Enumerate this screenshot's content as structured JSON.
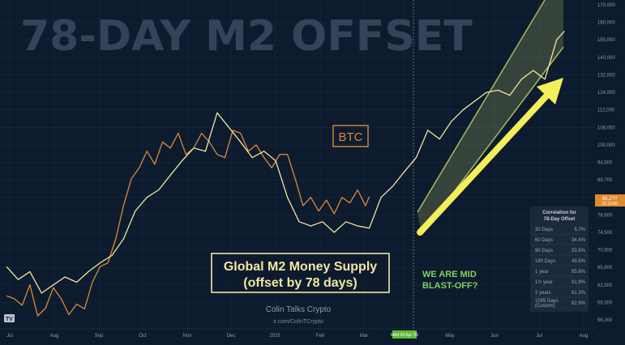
{
  "big_title": "78-DAY M2 OFFSET",
  "chart_data": {
    "type": "line",
    "title": "78-DAY M2 OFFSET",
    "x_ticks": [
      "Jul",
      "Aug",
      "Sep",
      "Oct",
      "Nov",
      "Dec",
      "2025",
      "Feb",
      "Mar",
      "Wed 09 Apr '25",
      "May",
      "Jun",
      "Jul",
      "Aug"
    ],
    "y_ticks": [
      56300,
      59300,
      62500,
      65800,
      70500,
      74500,
      78600,
      85000,
      89700,
      94500,
      100000,
      106000,
      112000,
      124000,
      132000,
      140000,
      150000,
      160000,
      170000
    ],
    "current_price_label": "85,2??",
    "current_price_sublabel": "22:19:50",
    "series": [
      {
        "name": "BTC",
        "color": "#d98a38",
        "x": [
          0,
          2,
          4,
          6,
          8,
          10,
          12,
          14,
          16,
          18,
          20,
          22,
          24,
          26,
          28,
          30,
          32,
          34,
          36,
          38,
          40,
          42,
          44,
          46,
          48,
          50,
          52,
          54,
          56,
          58,
          60,
          62,
          64,
          66,
          68,
          70,
          72,
          74,
          76,
          78,
          80,
          82,
          84,
          86,
          88,
          90,
          92,
          93
        ],
        "y": [
          60500,
          60000,
          58800,
          62500,
          57000,
          58300,
          62000,
          60000,
          57200,
          59000,
          58200,
          63000,
          66000,
          67000,
          73000,
          82000,
          90000,
          93000,
          98000,
          94000,
          101000,
          99000,
          104000,
          97000,
          99000,
          104000,
          101000,
          97000,
          96000,
          105000,
          104000,
          98000,
          100000,
          96000,
          93000,
          97000,
          97000,
          90000,
          82000,
          85000,
          80000,
          84000,
          79000,
          85000,
          83000,
          87000,
          82000,
          85200
        ]
      },
      {
        "name": "Global M2 Money Supply (offset by 78 days)",
        "color": "#f2e6a0",
        "x": [
          0,
          3,
          6,
          9,
          12,
          15,
          18,
          21,
          24,
          27,
          30,
          33,
          36,
          39,
          42,
          45,
          48,
          51,
          54,
          57,
          60,
          63,
          66,
          69,
          72,
          75,
          78,
          81,
          84,
          87,
          90,
          93,
          96,
          99,
          102,
          105,
          108,
          111,
          114,
          117,
          120,
          123,
          126,
          129,
          132,
          135,
          138,
          141,
          143
        ],
        "y": [
          66000,
          63500,
          65000,
          61000,
          62500,
          64000,
          63000,
          65000,
          67000,
          69000,
          73000,
          80000,
          85000,
          87000,
          91000,
          95000,
          99000,
          98000,
          111000,
          106000,
          101000,
          96000,
          98000,
          95000,
          85000,
          77000,
          76000,
          77000,
          74500,
          77000,
          76000,
          75500,
          85000,
          88000,
          92000,
          96000,
          105000,
          102000,
          108000,
          112000,
          118000,
          124000,
          125000,
          122000,
          130000,
          134000,
          130000,
          150000,
          155000
        ]
      }
    ],
    "annotations": {
      "btc_label": "BTC",
      "m2_label_line1": "Global M2 Money Supply",
      "m2_label_line2": "(offset by 78 days)",
      "blast_line1": "WE ARE MID",
      "blast_line2": "BLAST-OFF?"
    }
  },
  "brand": {
    "name": "Colin Talks Crypto",
    "url": "x.com/ColinTCrypto"
  },
  "correlation_table": {
    "title_line1": "Correlation for",
    "title_line2": "78-Day Offset",
    "rows": [
      {
        "period": "30 Days",
        "value": "5.7%"
      },
      {
        "period": "60 Days",
        "value": "34.4%"
      },
      {
        "period": "90 Days",
        "value": "33.5%"
      },
      {
        "period": "180 Days",
        "value": "49.5%"
      },
      {
        "period": "1 year",
        "value": "85.8%"
      },
      {
        "period": "1½ year",
        "value": "91.9%"
      },
      {
        "period": "2 years",
        "value": "81.3%"
      },
      {
        "period": "1095 Days (Custom)",
        "value": "82.9%"
      }
    ]
  },
  "tv_logo_text": "TV",
  "colors": {
    "background": "#0d1b2e",
    "btc": "#d98a38",
    "m2": "#f2e6a0",
    "channel": "#c6d36a",
    "arrow": "#f3ee5a",
    "blast_text": "#7fd35b",
    "highlight_tag": "#5dbb3a"
  }
}
